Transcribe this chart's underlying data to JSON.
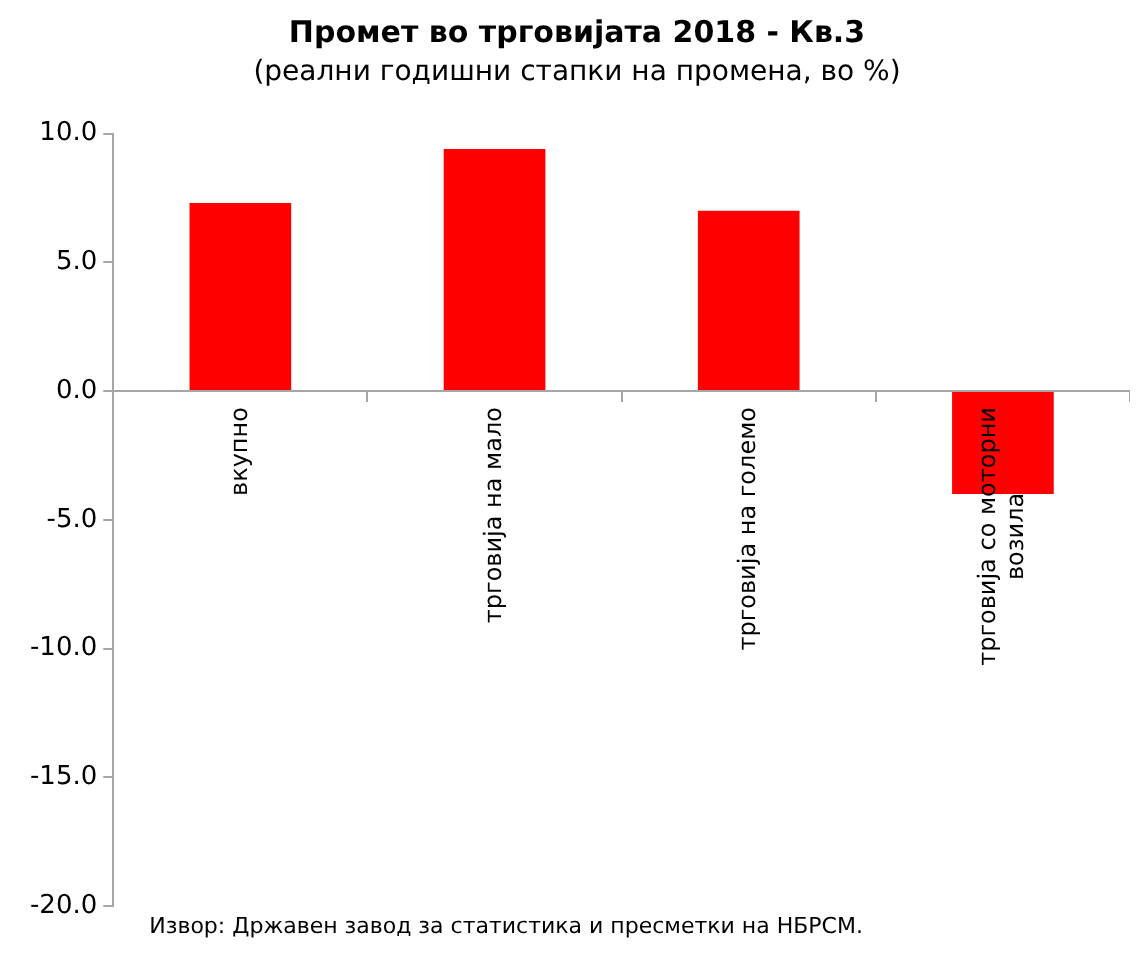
{
  "chart_data": {
    "type": "bar",
    "title": "Промет во трговијата 2018 - Кв.3",
    "subtitle": "(реални годишни стапки на промена, во %)",
    "categories": [
      "вкупно",
      "трговија на мало",
      "трговија на големо",
      "трговија со моторни возила"
    ],
    "values": [
      7.3,
      9.4,
      7.0,
      -4.0
    ],
    "color": "#ff0000",
    "ylim": [
      -20,
      10
    ],
    "yticks": [
      {
        "value": -20,
        "label": "-20.0"
      },
      {
        "value": -15,
        "label": "-15.0"
      },
      {
        "value": -10,
        "label": "-10.0"
      },
      {
        "value": -5,
        "label": "-5.0"
      },
      {
        "value": 0,
        "label": "0.0"
      },
      {
        "value": 5,
        "label": "5.0"
      },
      {
        "value": 10,
        "label": "10.0"
      }
    ],
    "grid": false,
    "legend": false,
    "annotations": [
      "Извор: Државен завод за статистика и пресметки на НБРСМ."
    ]
  }
}
